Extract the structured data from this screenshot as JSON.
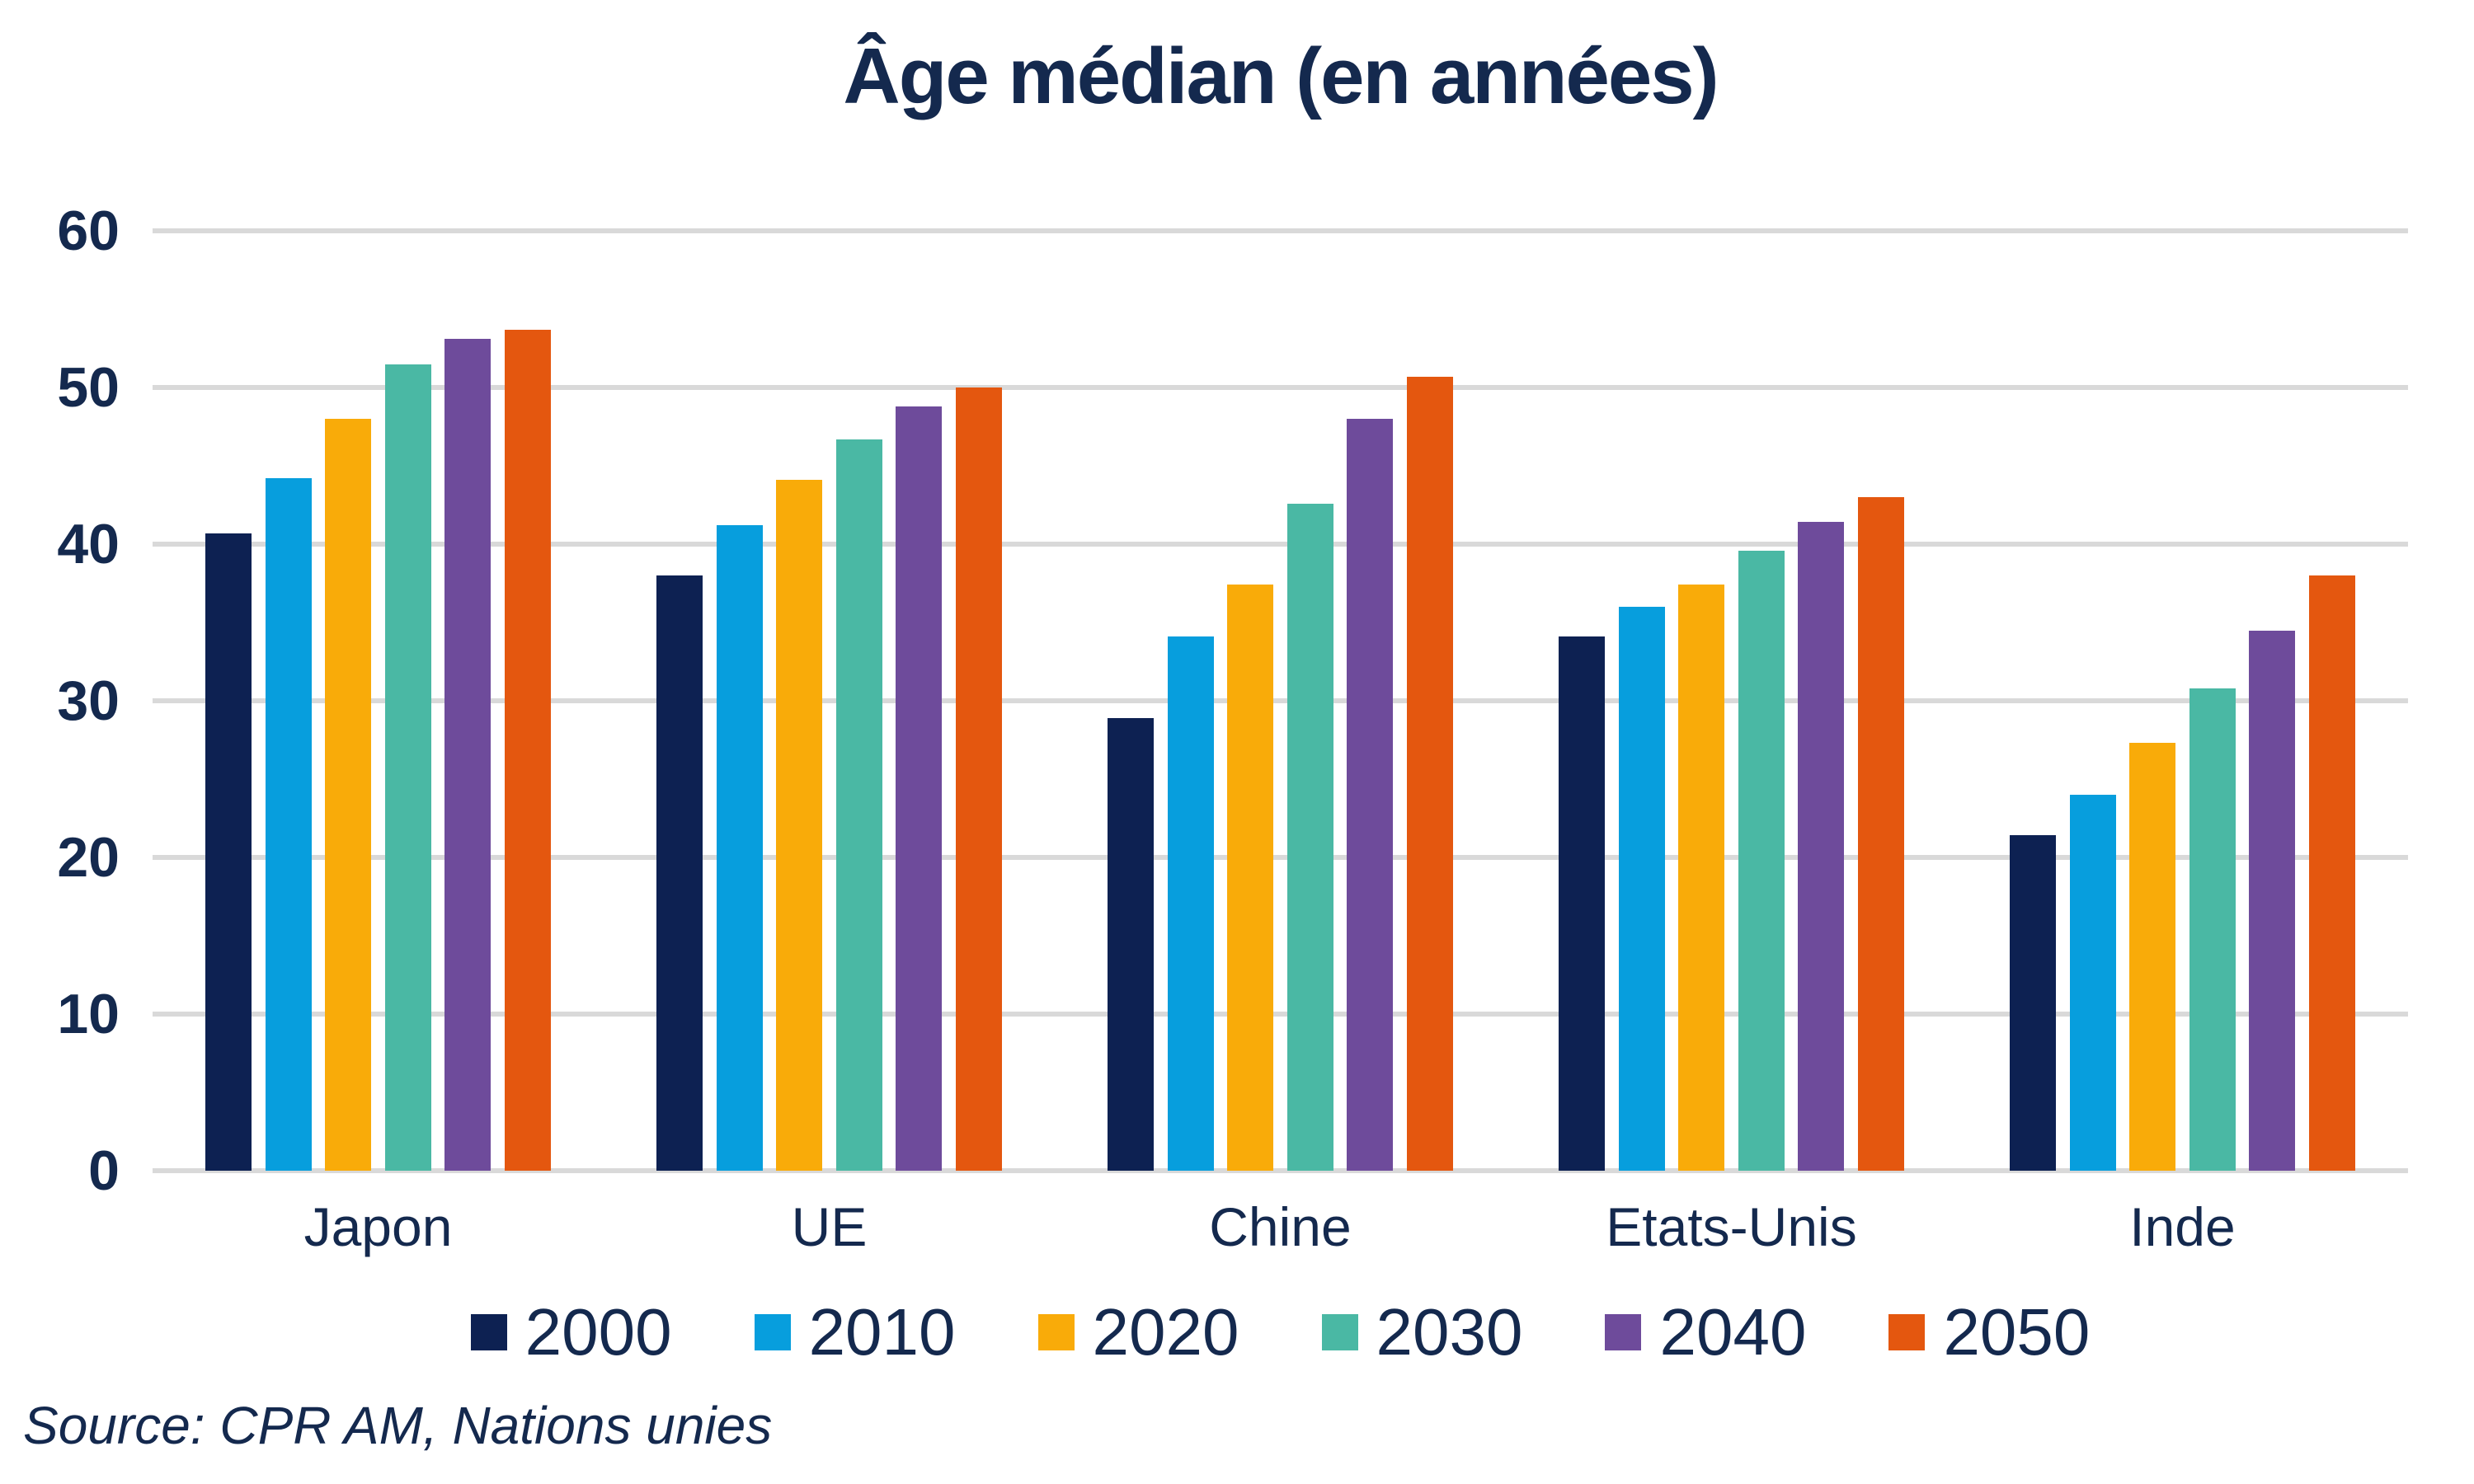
{
  "chart_data": {
    "type": "bar",
    "title": "Âge médian (en années)",
    "categories": [
      "Japon",
      "UE",
      "Chine",
      "Etats-Unis",
      "Inde"
    ],
    "series": [
      {
        "name": "2000",
        "color": "#0d2152",
        "values": [
          40.7,
          38.0,
          28.9,
          34.1,
          21.4
        ]
      },
      {
        "name": "2010",
        "color": "#079edd",
        "values": [
          44.2,
          41.2,
          34.1,
          36.0,
          24.0
        ]
      },
      {
        "name": "2020",
        "color": "#f9ab09",
        "values": [
          48.0,
          44.1,
          37.4,
          37.4,
          27.3
        ]
      },
      {
        "name": "2030",
        "color": "#4ab8a4",
        "values": [
          51.5,
          46.7,
          42.6,
          39.6,
          30.8
        ]
      },
      {
        "name": "2040",
        "color": "#6e4b9b",
        "values": [
          53.1,
          48.8,
          48.0,
          41.4,
          34.5
        ]
      },
      {
        "name": "2050",
        "color": "#e4570f",
        "values": [
          53.7,
          50.0,
          50.7,
          43.0,
          38.0
        ]
      }
    ],
    "ylim": [
      0,
      60
    ],
    "yticks": [
      0,
      10,
      20,
      30,
      40,
      50,
      60
    ],
    "grid": true,
    "legend_position": "bottom",
    "source": "Source: CPR AM, Nations unies",
    "colors": {
      "text": "#14294e",
      "gridline": "#d9d9d9",
      "background": "#ffffff"
    }
  }
}
